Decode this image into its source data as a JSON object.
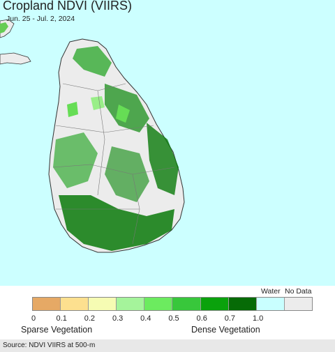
{
  "header": {
    "title": "Cropland NDVI (VIIRS)",
    "subtitle": "Jun. 25 - Jul. 2, 2024"
  },
  "map": {
    "background_color": "#ccffff",
    "land_nodata_color": "#ececec",
    "vegetation_colors": [
      "#33aa33",
      "#1a8f1a",
      "#0a7a0a",
      "#66dd55",
      "#99ee88"
    ]
  },
  "legend": {
    "water_label": "Water",
    "nodata_label": "No Data",
    "ticks": [
      "0",
      "0.1",
      "0.2",
      "0.3",
      "0.4",
      "0.5",
      "0.6",
      "0.7",
      "1.0"
    ],
    "sparse_label": "Sparse Vegetation",
    "dense_label": "Dense Vegetation",
    "colors": [
      "#e6a965",
      "#fde08f",
      "#f6fcb3",
      "#a5f49b",
      "#6ceb5f",
      "#38c73b",
      "#0aa20c",
      "#066b06",
      "#c9ffff",
      "#ececec"
    ]
  },
  "footer": {
    "source": "Source: NDVI VIIRS at 500-m"
  }
}
